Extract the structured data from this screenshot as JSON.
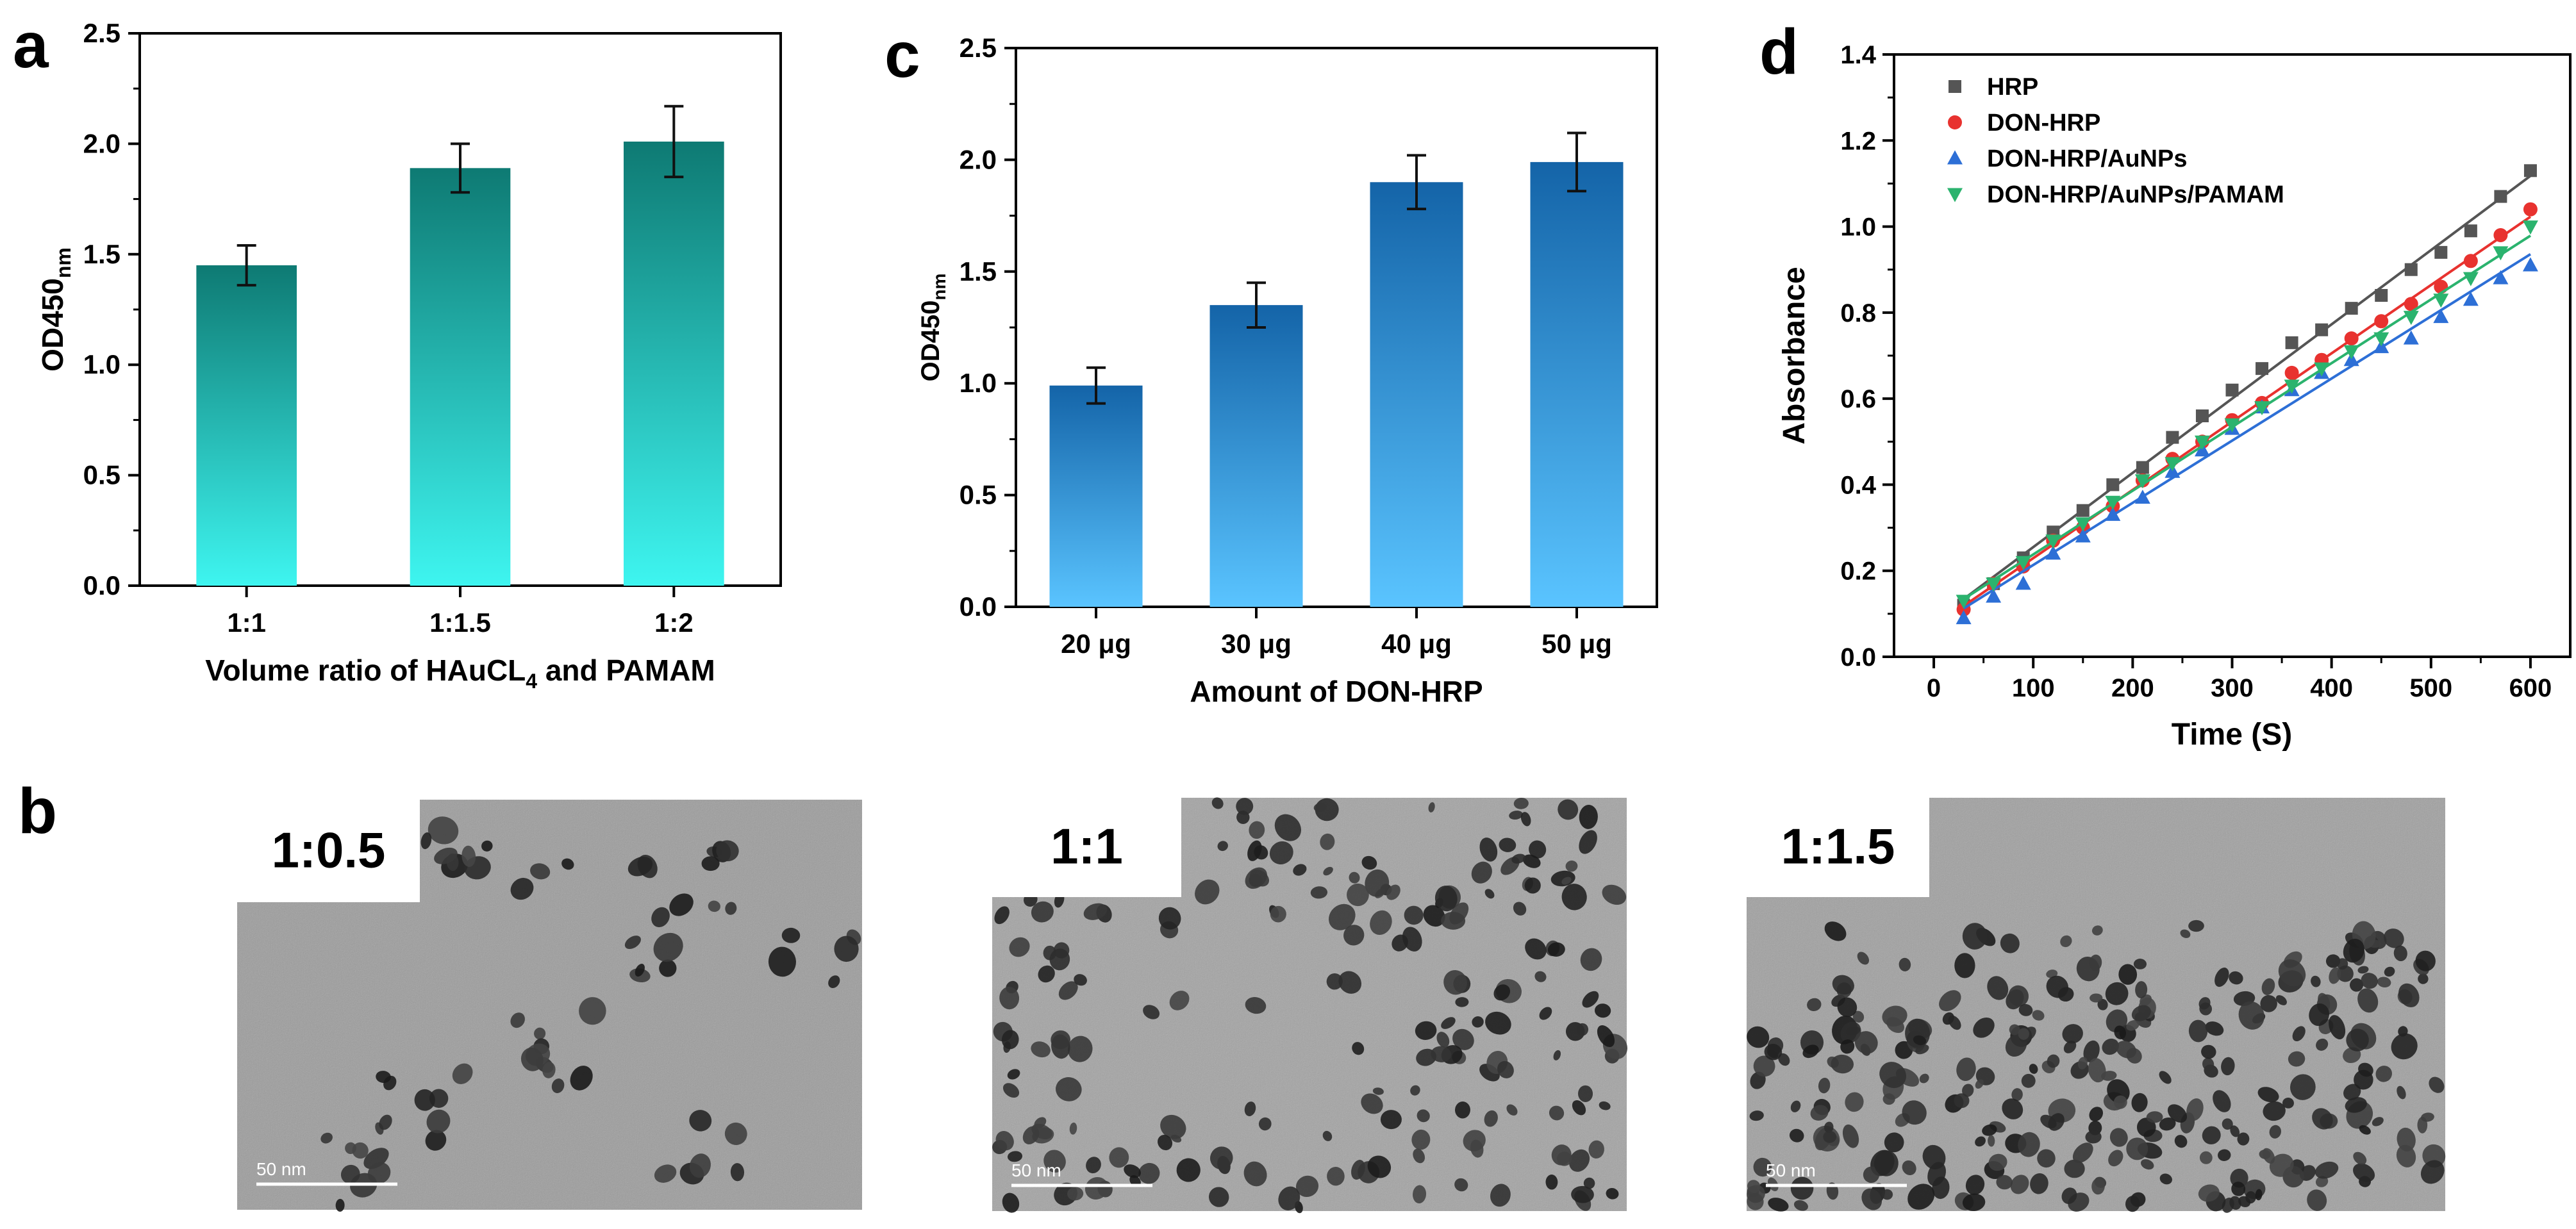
{
  "panel_letters": {
    "a": "a",
    "b": "b",
    "c": "c",
    "d": "d"
  },
  "chart_data": [
    {
      "panel": "a",
      "type": "bar",
      "ylabel_main": "OD450",
      "ylabel_sub": "nm",
      "xlabel_main": "Volume ratio of HAuCL",
      "xlabel_sub": "4",
      "xlabel_tail": " and PAMAM",
      "categories": [
        "1:1",
        "1:1.5",
        "1:2"
      ],
      "values": [
        1.45,
        1.89,
        2.01
      ],
      "errors": [
        0.09,
        0.11,
        0.16
      ],
      "ylim": [
        0,
        2.5
      ],
      "yticks": [
        "0.0",
        "0.5",
        "1.0",
        "1.5",
        "2.0",
        "2.5"
      ],
      "bar_gradient": [
        "#0e7a73",
        "#3ef5f0"
      ]
    },
    {
      "panel": "c",
      "type": "bar",
      "ylabel_main": "OD450",
      "ylabel_sub": "nm",
      "xlabel": "Amount of DON-HRP",
      "categories": [
        "20 μg",
        "30 μg",
        "40 μg",
        "50 μg"
      ],
      "values": [
        0.99,
        1.35,
        1.9,
        1.99
      ],
      "errors": [
        0.08,
        0.1,
        0.12,
        0.13
      ],
      "ylim": [
        0,
        2.5
      ],
      "yticks": [
        "0.0",
        "0.5",
        "1.0",
        "1.5",
        "2.0",
        "2.5"
      ],
      "bar_gradient": [
        "#1464a8",
        "#5ac4ff"
      ]
    },
    {
      "panel": "d",
      "type": "scatter",
      "xlabel": "Time (S)",
      "ylabel": "Absorbance",
      "xlim": [
        -40,
        640
      ],
      "ylim": [
        0,
        1.4
      ],
      "xticks": [
        "0",
        "100",
        "200",
        "300",
        "400",
        "500",
        "600"
      ],
      "yticks": [
        "0.0",
        "0.2",
        "0.4",
        "0.6",
        "0.8",
        "1.0",
        "1.2",
        "1.4"
      ],
      "legend_position": "top-left",
      "x": [
        30,
        60,
        90,
        120,
        150,
        180,
        210,
        240,
        270,
        300,
        330,
        360,
        390,
        420,
        450,
        480,
        510,
        540,
        570,
        600
      ],
      "series": [
        {
          "name": "HRP",
          "marker": "square",
          "color": "#555555",
          "values": [
            0.12,
            0.17,
            0.23,
            0.29,
            0.34,
            0.4,
            0.44,
            0.51,
            0.56,
            0.62,
            0.67,
            0.73,
            0.76,
            0.81,
            0.84,
            0.9,
            0.94,
            0.99,
            1.07,
            1.13
          ]
        },
        {
          "name": "DON-HRP",
          "marker": "circle",
          "color": "#e8322f",
          "values": [
            0.11,
            0.17,
            0.21,
            0.27,
            0.3,
            0.35,
            0.41,
            0.46,
            0.5,
            0.55,
            0.59,
            0.66,
            0.69,
            0.74,
            0.78,
            0.82,
            0.86,
            0.92,
            0.98,
            1.04
          ]
        },
        {
          "name": "DON-HRP/AuNPs",
          "marker": "triangle-up",
          "color": "#2d6fd6",
          "values": [
            0.09,
            0.14,
            0.17,
            0.24,
            0.28,
            0.33,
            0.37,
            0.43,
            0.48,
            0.53,
            0.58,
            0.62,
            0.66,
            0.69,
            0.72,
            0.74,
            0.79,
            0.83,
            0.88,
            0.91
          ]
        },
        {
          "name": "DON-HRP/AuNPs/PAMAM",
          "marker": "triangle-down",
          "color": "#2bb36e",
          "values": [
            0.13,
            0.17,
            0.22,
            0.27,
            0.31,
            0.36,
            0.41,
            0.45,
            0.5,
            0.54,
            0.58,
            0.63,
            0.67,
            0.71,
            0.74,
            0.79,
            0.83,
            0.88,
            0.94,
            1.0
          ]
        }
      ]
    }
  ],
  "tem_images": [
    {
      "ratio": "1:0.5",
      "scale": "50 nm"
    },
    {
      "ratio": "1:1",
      "scale": "50 nm"
    },
    {
      "ratio": "1:1.5",
      "scale": "50 nm"
    }
  ]
}
